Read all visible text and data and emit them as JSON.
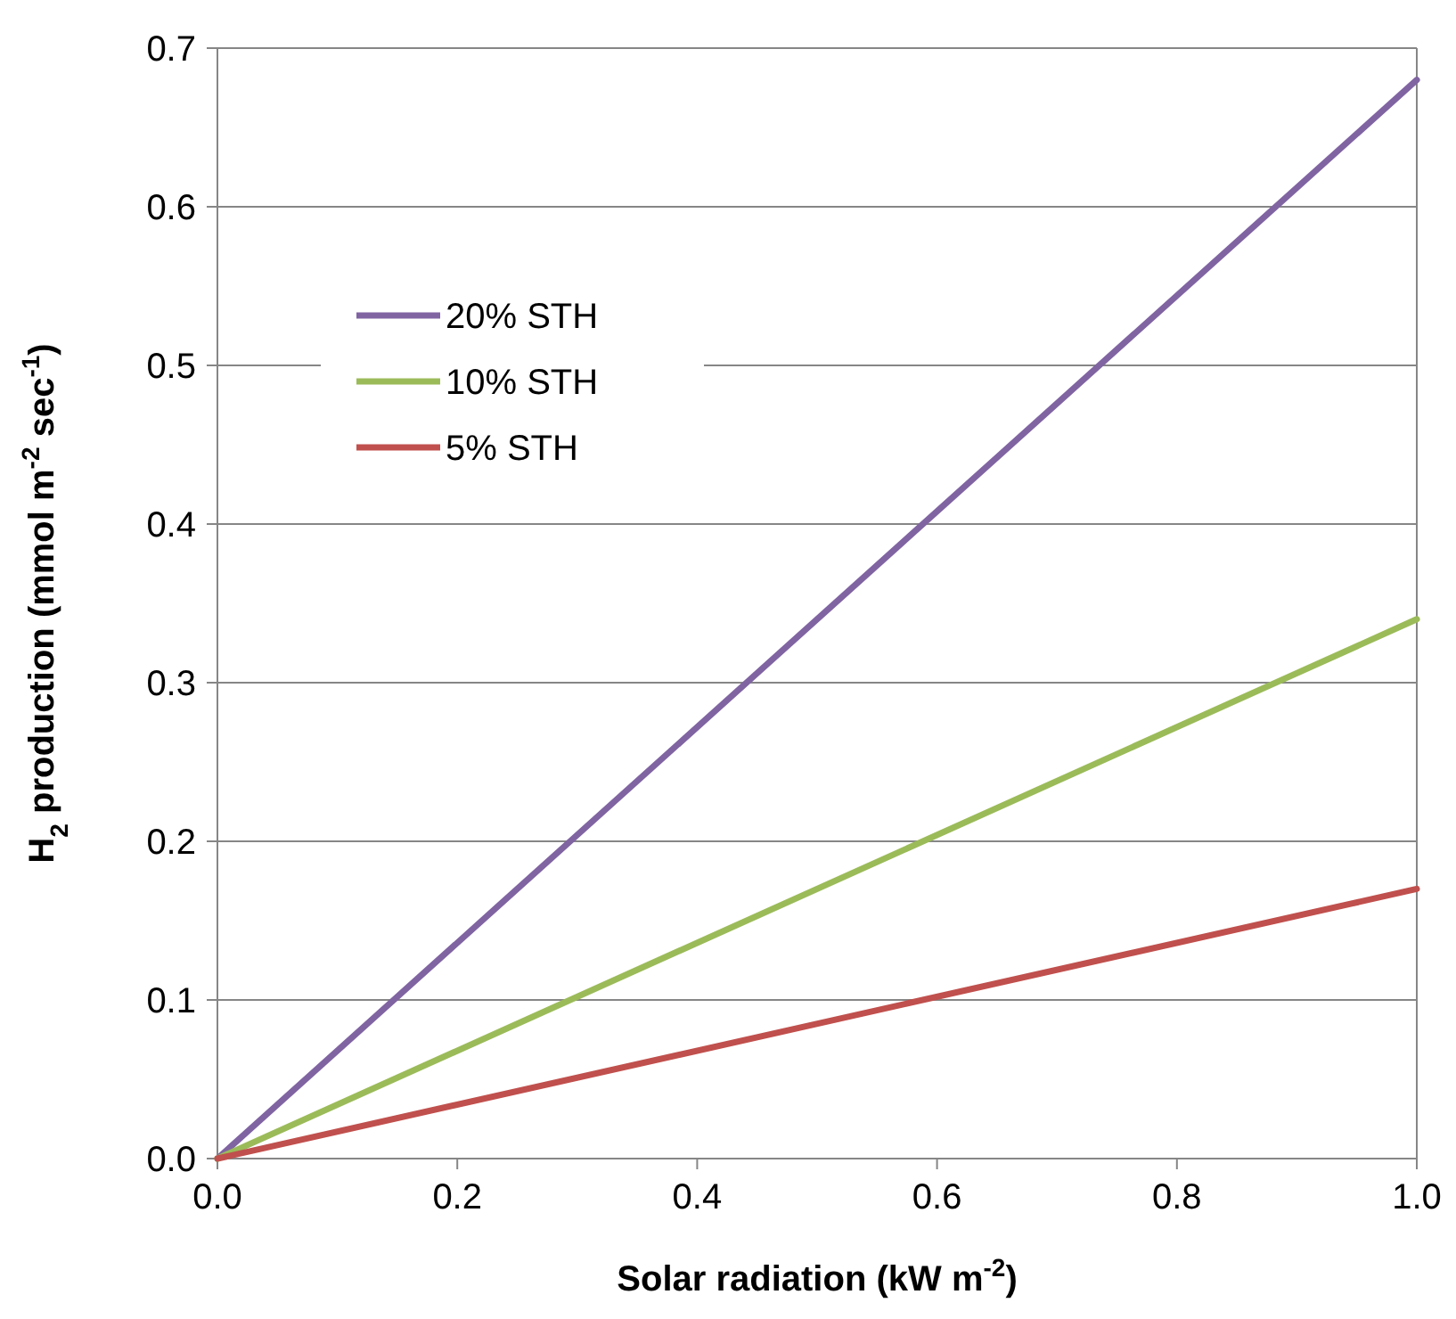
{
  "chart_data": {
    "type": "line",
    "xlabel": "Solar radiation (kW m$^{-2}$)",
    "ylabel": "H$_{2}$ production (mmol m$^{-2}$ sec$^{-1}$)",
    "x": [
      0,
      1
    ],
    "series": [
      {
        "name": "20% STH",
        "color": "#8064a2",
        "values": [
          0,
          0.68
        ]
      },
      {
        "name": "10% STH",
        "color": "#9bbb59",
        "values": [
          0,
          0.34
        ]
      },
      {
        "name": "5% STH",
        "color": "#c0504d",
        "values": [
          0,
          0.17
        ]
      }
    ],
    "xlim": [
      0,
      1
    ],
    "xticks": [
      {
        "value": 0,
        "label": "0.0"
      },
      0.2,
      0.4,
      0.6,
      0.8,
      {
        "value": 1,
        "label": "1.0"
      }
    ],
    "ylim": [
      0,
      0.7
    ],
    "yticks": [
      {
        "value": 0,
        "label": "0.0"
      },
      0.1,
      0.2,
      0.3,
      0.4,
      0.5,
      0.6,
      0.7
    ],
    "grid": "y",
    "legend": "top left",
    "marker": "none",
    "line_style": "solid"
  }
}
